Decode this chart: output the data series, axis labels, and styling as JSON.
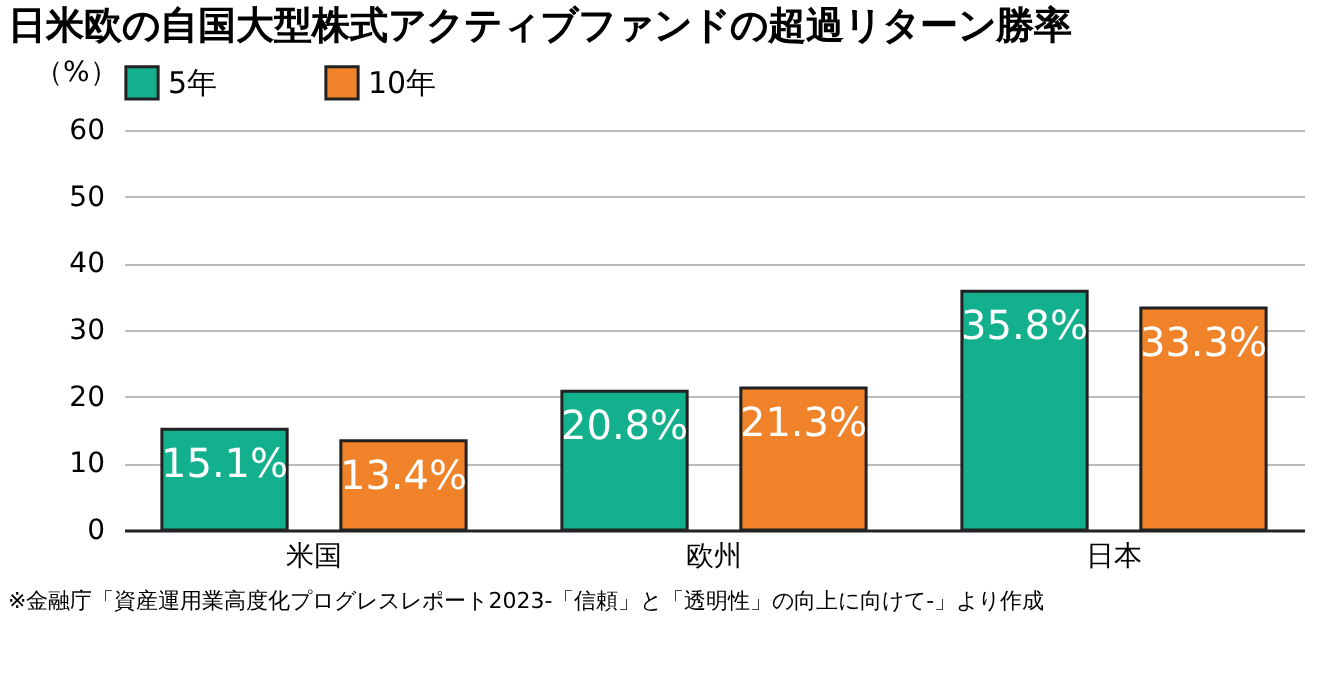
{
  "chart_data": {
    "type": "bar",
    "title": "日米欧の自国大型株式アクティブファンドの超過リターン勝率",
    "ylabel": "（%）",
    "categories": [
      "米国",
      "欧州",
      "日本"
    ],
    "series": [
      {
        "name": "5年",
        "color": "#13b08e",
        "values": [
          15.1,
          20.8,
          35.8
        ],
        "value_labels": [
          "15.1%",
          "20.8%",
          "35.8%"
        ]
      },
      {
        "name": "10年",
        "color": "#f0832a",
        "values": [
          13.4,
          21.3,
          33.3
        ],
        "value_labels": [
          "13.4%",
          "21.3%",
          "33.3%"
        ]
      }
    ],
    "ylim": [
      0,
      60
    ],
    "yticks": [
      0,
      10,
      20,
      30,
      40,
      50,
      60
    ],
    "grid": "y",
    "legend": "top left",
    "annotations": [
      "※金融庁「資産運用業高度化プログレスレポート2023-「信頼」と「透明性」の向上に向けて-」より作成"
    ]
  }
}
